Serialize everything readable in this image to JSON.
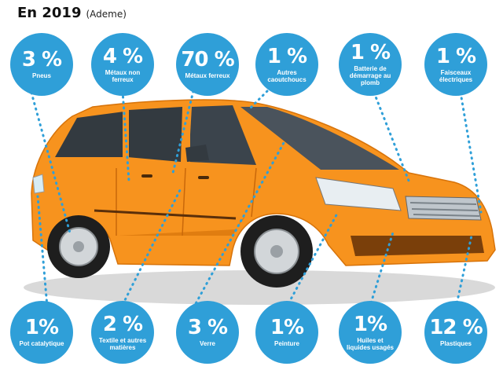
{
  "header": {
    "title": "En 2019",
    "source": "(Ademe)"
  },
  "colors": {
    "badge": "#2f9fd8",
    "car_body": "#f7931e",
    "leader": "#2f9fd8"
  },
  "badges": {
    "top": [
      {
        "percent": "3 %",
        "label": "Pneus"
      },
      {
        "percent": "4 %",
        "label": "Métaux non ferreux"
      },
      {
        "percent": "70 %",
        "label": "Métaux ferreux"
      },
      {
        "percent": "1 %",
        "label": "Autres caoutchoucs"
      },
      {
        "percent": "1 %",
        "label": "Batterie de démarrage au plomb"
      },
      {
        "percent": "1 %",
        "label": "Faisceaux électriques"
      }
    ],
    "bottom": [
      {
        "percent": "1%",
        "label": "Pot catalytique"
      },
      {
        "percent": "2 %",
        "label": "Textile et autres matières"
      },
      {
        "percent": "3 %",
        "label": "Verre"
      },
      {
        "percent": "1%",
        "label": "Peinture"
      },
      {
        "percent": "1%",
        "label": "Huiles et liquides usagés"
      },
      {
        "percent": "12 %",
        "label": "Plastiques"
      }
    ]
  }
}
